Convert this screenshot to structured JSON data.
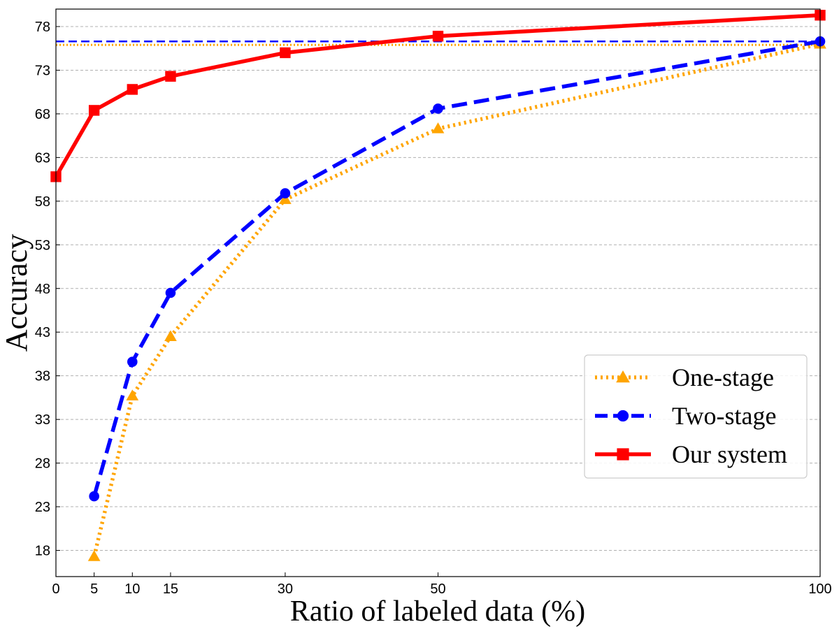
{
  "chart_data": {
    "type": "line",
    "title": "",
    "xlabel": "Ratio of labeled data (%)",
    "ylabel": "Accuracy",
    "xlim": [
      0,
      100
    ],
    "ylim": [
      15,
      80
    ],
    "xticks": [
      0,
      5,
      10,
      15,
      30,
      50,
      100
    ],
    "yticks": [
      18,
      23,
      28,
      33,
      38,
      43,
      48,
      53,
      58,
      63,
      68,
      73,
      78
    ],
    "grid": "horizontal dashed",
    "legend_position": "lower-right",
    "series": [
      {
        "name": "One-stage",
        "color": "#FFA500",
        "linestyle": "dotted",
        "marker": "triangle",
        "x": [
          5,
          10,
          15,
          30,
          50,
          100
        ],
        "values": [
          17.3,
          35.7,
          42.5,
          58.2,
          66.3,
          76.0
        ],
        "reference_line": 75.9
      },
      {
        "name": "Two-stage",
        "color": "#0000FF",
        "linestyle": "dashed",
        "marker": "circle",
        "x": [
          5,
          10,
          15,
          30,
          50,
          100
        ],
        "values": [
          24.2,
          39.6,
          47.5,
          58.9,
          68.6,
          76.3
        ],
        "reference_line": 76.3
      },
      {
        "name": "Our system",
        "color": "#FF0000",
        "linestyle": "solid",
        "marker": "square",
        "x": [
          0,
          5,
          10,
          15,
          30,
          50,
          100
        ],
        "values": [
          60.8,
          68.4,
          70.8,
          72.3,
          75.0,
          76.9,
          79.3
        ]
      }
    ]
  }
}
